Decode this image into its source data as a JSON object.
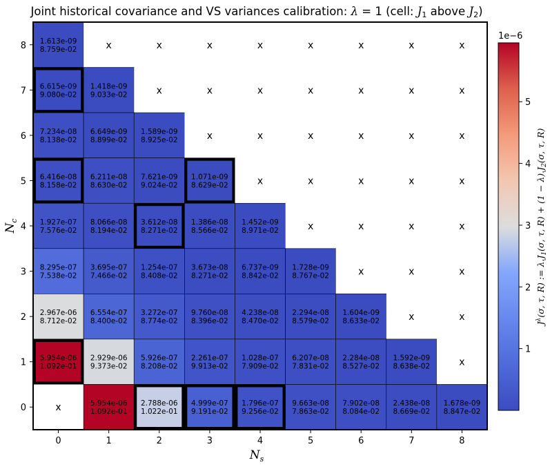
{
  "chart_data": {
    "type": "heatmap",
    "title": "Joint historical covariance and VS variances calibration: λ = 1 (cell: J₁ above J₂)",
    "xlabel": "N_s",
    "ylabel": "N_c",
    "x_ticks": [
      "0",
      "1",
      "2",
      "3",
      "4",
      "5",
      "6",
      "7",
      "8"
    ],
    "y_ticks": [
      "0",
      "1",
      "2",
      "3",
      "4",
      "5",
      "6",
      "7",
      "8"
    ],
    "missing_marker": "x",
    "colorbar": {
      "label": "J^λ(σ, τ, R) := λ.J₁(σ, τ, R) + (1 − λ).J₂(σ, τ, R)",
      "scale_label": "1e−6",
      "vmin": 0,
      "vmax": 5.954,
      "ticks": [
        1,
        2,
        3,
        4,
        5
      ],
      "tick_labels": [
        "1",
        "2",
        "3",
        "4",
        "5"
      ]
    },
    "rows": [
      {
        "nc": 8,
        "cells": [
          {
            "j1": "1.613e-09",
            "j2": "8.759e-02",
            "value": 0.001613
          },
          null,
          null,
          null,
          null,
          null,
          null,
          null,
          null
        ]
      },
      {
        "nc": 7,
        "cells": [
          {
            "j1": "6.615e-09",
            "j2": "9.080e-02",
            "value": 0.006615,
            "highlight": true
          },
          {
            "j1": "1.418e-09",
            "j2": "9.033e-02",
            "value": 0.001418
          },
          null,
          null,
          null,
          null,
          null,
          null,
          null
        ]
      },
      {
        "nc": 6,
        "cells": [
          {
            "j1": "7.234e-08",
            "j2": "8.138e-02",
            "value": 0.07234
          },
          {
            "j1": "6.649e-09",
            "j2": "8.899e-02",
            "value": 0.006649
          },
          {
            "j1": "1.589e-09",
            "j2": "8.925e-02",
            "value": 0.001589
          },
          null,
          null,
          null,
          null,
          null,
          null
        ]
      },
      {
        "nc": 5,
        "cells": [
          {
            "j1": "6.416e-08",
            "j2": "8.158e-02",
            "value": 0.06416,
            "highlight": true
          },
          {
            "j1": "6.211e-08",
            "j2": "8.630e-02",
            "value": 0.06211
          },
          {
            "j1": "7.621e-09",
            "j2": "9.024e-02",
            "value": 0.007621
          },
          {
            "j1": "1.071e-09",
            "j2": "8.629e-02",
            "value": 0.001071,
            "highlight": true
          },
          null,
          null,
          null,
          null,
          null
        ]
      },
      {
        "nc": 4,
        "cells": [
          {
            "j1": "1.927e-07",
            "j2": "7.576e-02",
            "value": 0.1927
          },
          {
            "j1": "8.066e-08",
            "j2": "8.194e-02",
            "value": 0.08066
          },
          {
            "j1": "3.612e-08",
            "j2": "8.271e-02",
            "value": 0.03612,
            "highlight": true
          },
          {
            "j1": "1.386e-08",
            "j2": "8.566e-02",
            "value": 0.01386
          },
          {
            "j1": "1.452e-09",
            "j2": "8.971e-02",
            "value": 0.001452
          },
          null,
          null,
          null,
          null
        ]
      },
      {
        "nc": 3,
        "cells": [
          {
            "j1": "8.295e-07",
            "j2": "7.538e-02",
            "value": 0.8295
          },
          {
            "j1": "3.695e-07",
            "j2": "7.466e-02",
            "value": 0.3695
          },
          {
            "j1": "1.254e-07",
            "j2": "8.408e-02",
            "value": 0.1254
          },
          {
            "j1": "3.673e-08",
            "j2": "8.271e-02",
            "value": 0.03673
          },
          {
            "j1": "6.737e-09",
            "j2": "8.842e-02",
            "value": 0.006737
          },
          {
            "j1": "1.728e-09",
            "j2": "8.767e-02",
            "value": 0.001728
          },
          null,
          null,
          null
        ]
      },
      {
        "nc": 2,
        "cells": [
          {
            "j1": "2.967e-06",
            "j2": "8.712e-02",
            "value": 2.967
          },
          {
            "j1": "6.554e-07",
            "j2": "8.400e-02",
            "value": 0.6554
          },
          {
            "j1": "3.272e-07",
            "j2": "8.774e-02",
            "value": 0.3272
          },
          {
            "j1": "9.760e-08",
            "j2": "8.396e-02",
            "value": 0.0976
          },
          {
            "j1": "4.238e-08",
            "j2": "8.470e-02",
            "value": 0.04238
          },
          {
            "j1": "2.294e-08",
            "j2": "8.579e-02",
            "value": 0.02294
          },
          {
            "j1": "1.604e-09",
            "j2": "8.633e-02",
            "value": 0.001604
          },
          null,
          null
        ]
      },
      {
        "nc": 1,
        "cells": [
          {
            "j1": "5.954e-06",
            "j2": "1.092e-01",
            "value": 5.954,
            "highlight": true
          },
          {
            "j1": "2.929e-06",
            "j2": "9.373e-02",
            "value": 2.929
          },
          {
            "j1": "5.926e-07",
            "j2": "8.208e-02",
            "value": 0.5926
          },
          {
            "j1": "2.261e-07",
            "j2": "9.913e-02",
            "value": 0.2261
          },
          {
            "j1": "1.028e-07",
            "j2": "7.909e-02",
            "value": 0.1028
          },
          {
            "j1": "6.207e-08",
            "j2": "7.831e-02",
            "value": 0.06207
          },
          {
            "j1": "2.284e-08",
            "j2": "8.527e-02",
            "value": 0.02284
          },
          {
            "j1": "1.592e-09",
            "j2": "8.638e-02",
            "value": 0.001592
          },
          null
        ]
      },
      {
        "nc": 0,
        "cells": [
          null,
          {
            "j1": "5.954e-06",
            "j2": "1.092e-01",
            "value": 5.954
          },
          {
            "j1": "2.788e-06",
            "j2": "1.022e-01",
            "value": 2.788,
            "highlight": true
          },
          {
            "j1": "4.999e-07",
            "j2": "9.191e-02",
            "value": 0.4999,
            "highlight": true
          },
          {
            "j1": "1.796e-07",
            "j2": "9.256e-02",
            "value": 0.1796,
            "highlight": true
          },
          {
            "j1": "9.663e-08",
            "j2": "7.863e-02",
            "value": 0.09663
          },
          {
            "j1": "7.902e-08",
            "j2": "8.084e-02",
            "value": 0.07902
          },
          {
            "j1": "2.438e-08",
            "j2": "8.669e-02",
            "value": 0.02438
          },
          {
            "j1": "1.678e-09",
            "j2": "8.847e-02",
            "value": 0.001678
          }
        ]
      }
    ]
  }
}
